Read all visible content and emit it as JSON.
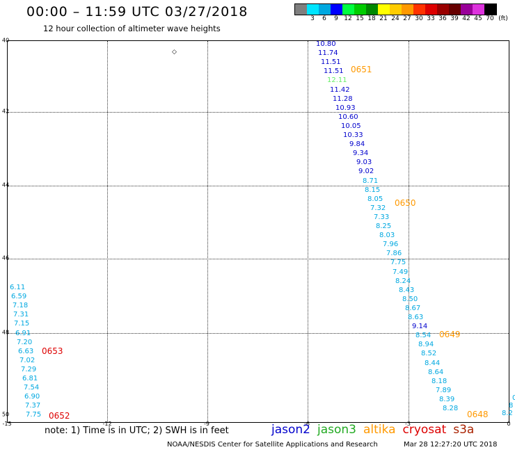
{
  "header": {
    "title": "00:00 – 11:59 UTC 03/27/2018",
    "subtitle": "12 hour collection of altimeter wave heights"
  },
  "legend": {
    "unit": "(ft)",
    "bins": [
      {
        "label": "",
        "color": "#7f7f7f"
      },
      {
        "label": "3",
        "color": "#00e5ff"
      },
      {
        "label": "6",
        "color": "#00a8e0"
      },
      {
        "label": "9",
        "color": "#0000ff"
      },
      {
        "label": "12",
        "color": "#00ff40"
      },
      {
        "label": "15",
        "color": "#00cc00"
      },
      {
        "label": "18",
        "color": "#008800"
      },
      {
        "label": "21",
        "color": "#ffff00"
      },
      {
        "label": "24",
        "color": "#ffcc00"
      },
      {
        "label": "27",
        "color": "#ff9900"
      },
      {
        "label": "30",
        "color": "#ff3300"
      },
      {
        "label": "33",
        "color": "#dd0000"
      },
      {
        "label": "36",
        "color": "#990000"
      },
      {
        "label": "39",
        "color": "#660000"
      },
      {
        "label": "42",
        "color": "#990099"
      },
      {
        "label": "45",
        "color": "#dd33dd"
      },
      {
        "label": "70",
        "color": "#000000"
      }
    ]
  },
  "map": {
    "lon_labels": [
      "-15",
      "-12",
      "-9",
      "-6",
      "-3",
      "0"
    ],
    "lat_labels": [
      "40",
      "42",
      "44",
      "46",
      "48",
      "50"
    ],
    "colors": {
      "jason2": "#0000cc",
      "jason3": "#22aa22",
      "altika": "#ff9900",
      "cryosat": "#dd0000",
      "s3a": "#aa2200",
      "cyan": "#00a8e0",
      "green_light": "#66ee66"
    },
    "altika_obs": [
      {
        "v": "10.80",
        "c": "jason2"
      },
      {
        "v": "11.74",
        "c": "jason2"
      },
      {
        "v": "11.51",
        "c": "jason2"
      },
      {
        "v": "11.51",
        "c": "jason2"
      },
      {
        "v": "12.11",
        "c": "green_light"
      },
      {
        "v": "11.42",
        "c": "jason2"
      },
      {
        "v": "11.28",
        "c": "jason2"
      },
      {
        "v": "10.93",
        "c": "jason2"
      },
      {
        "v": "10.60",
        "c": "jason2"
      },
      {
        "v": "10.05",
        "c": "jason2"
      },
      {
        "v": "10.33",
        "c": "jason2"
      },
      {
        "v": "9.84",
        "c": "jason2"
      },
      {
        "v": "9.34",
        "c": "jason2"
      },
      {
        "v": "9.03",
        "c": "jason2"
      },
      {
        "v": "9.02",
        "c": "jason2"
      },
      {
        "v": "8.71",
        "c": "cyan"
      },
      {
        "v": "8.15",
        "c": "cyan"
      },
      {
        "v": "8.05",
        "c": "cyan"
      },
      {
        "v": "7.32",
        "c": "cyan"
      },
      {
        "v": "7.33",
        "c": "cyan"
      },
      {
        "v": "8.25",
        "c": "cyan"
      },
      {
        "v": "8.03",
        "c": "cyan"
      },
      {
        "v": "7.96",
        "c": "cyan"
      },
      {
        "v": "7.86",
        "c": "cyan"
      },
      {
        "v": "7.75",
        "c": "cyan"
      },
      {
        "v": "7.49",
        "c": "cyan"
      },
      {
        "v": "8.24",
        "c": "cyan"
      },
      {
        "v": "8.43",
        "c": "cyan"
      },
      {
        "v": "8.50",
        "c": "cyan"
      },
      {
        "v": "8.67",
        "c": "cyan"
      },
      {
        "v": "8.63",
        "c": "cyan"
      },
      {
        "v": "9.14",
        "c": "jason2"
      },
      {
        "v": "8.54",
        "c": "cyan"
      },
      {
        "v": "8.94",
        "c": "cyan"
      },
      {
        "v": "8.52",
        "c": "cyan"
      },
      {
        "v": "8.44",
        "c": "cyan"
      },
      {
        "v": "8.64",
        "c": "cyan"
      },
      {
        "v": "8.18",
        "c": "cyan"
      },
      {
        "v": "7.89",
        "c": "cyan"
      },
      {
        "v": "8.39",
        "c": "cyan"
      },
      {
        "v": "8.28",
        "c": "cyan"
      }
    ],
    "cryosat_obs": [
      {
        "v": "6.11",
        "c": "cyan"
      },
      {
        "v": "6.59",
        "c": "cyan"
      },
      {
        "v": "7.18",
        "c": "cyan"
      },
      {
        "v": "7.31",
        "c": "cyan"
      },
      {
        "v": "7.15",
        "c": "cyan"
      },
      {
        "v": "6.91",
        "c": "cyan"
      },
      {
        "v": "7.20",
        "c": "cyan"
      },
      {
        "v": "6.63",
        "c": "cyan"
      },
      {
        "v": "7.02",
        "c": "cyan"
      },
      {
        "v": "7.29",
        "c": "cyan"
      },
      {
        "v": "6.81",
        "c": "cyan"
      },
      {
        "v": "7.54",
        "c": "cyan"
      },
      {
        "v": "6.90",
        "c": "cyan"
      },
      {
        "v": "7.37",
        "c": "cyan"
      },
      {
        "v": "7.75",
        "c": "cyan"
      }
    ],
    "track_times": [
      {
        "t": "0651",
        "c": "altika"
      },
      {
        "t": "0650",
        "c": "altika"
      },
      {
        "t": "0649",
        "c": "altika"
      },
      {
        "t": "0648",
        "c": "altika"
      },
      {
        "t": "0653",
        "c": "cryosat"
      },
      {
        "t": "0652",
        "c": "cryosat"
      }
    ],
    "edge_partial": [
      {
        "v": "8.2",
        "c": "cyan"
      },
      {
        "v": "8",
        "c": "cyan"
      },
      {
        "v": "0",
        "c": "cyan"
      }
    ]
  },
  "footer": {
    "note": "note: 1) Time is in UTC; 2) SWH is in feet",
    "satellites": [
      {
        "name": "jason2",
        "color": "#0000cc"
      },
      {
        "name": "jason3",
        "color": "#22aa22"
      },
      {
        "name": "altika",
        "color": "#ff9900"
      },
      {
        "name": "cryosat",
        "color": "#dd0000"
      },
      {
        "name": "s3a",
        "color": "#aa2200"
      }
    ],
    "credit": "NOAA/NESDIS Center for Satellite Applications and Research",
    "timestamp": "Mar 28 12:27:20 UTC 2018"
  }
}
